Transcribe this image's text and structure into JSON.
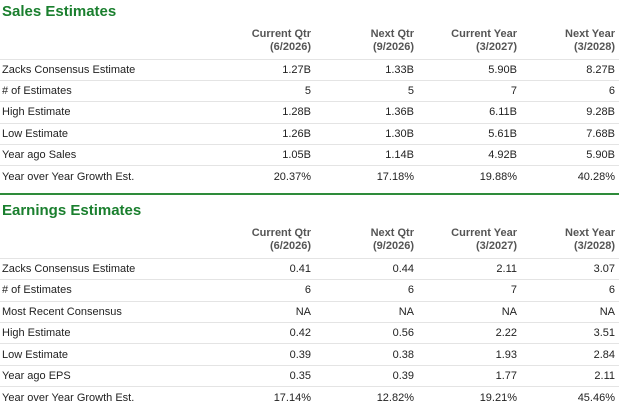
{
  "sales": {
    "title": "Sales Estimates",
    "columns": [
      {
        "label": "Current Qtr",
        "period": "(6/2026)"
      },
      {
        "label": "Next Qtr",
        "period": "(9/2026)"
      },
      {
        "label": "Current Year",
        "period": "(3/2027)"
      },
      {
        "label": "Next Year",
        "period": "(3/2028)"
      }
    ],
    "rows": [
      {
        "label": "Zacks Consensus Estimate",
        "values": [
          "1.27B",
          "1.33B",
          "5.90B",
          "8.27B"
        ]
      },
      {
        "label": "# of Estimates",
        "values": [
          "5",
          "5",
          "7",
          "6"
        ]
      },
      {
        "label": "High Estimate",
        "values": [
          "1.28B",
          "1.36B",
          "6.11B",
          "9.28B"
        ]
      },
      {
        "label": "Low Estimate",
        "values": [
          "1.26B",
          "1.30B",
          "5.61B",
          "7.68B"
        ]
      },
      {
        "label": "Year ago Sales",
        "values": [
          "1.05B",
          "1.14B",
          "4.92B",
          "5.90B"
        ]
      },
      {
        "label": "Year over Year Growth Est.",
        "values": [
          "20.37%",
          "17.18%",
          "19.88%",
          "40.28%"
        ]
      }
    ]
  },
  "earnings": {
    "title": "Earnings Estimates",
    "columns": [
      {
        "label": "Current Qtr",
        "period": "(6/2026)"
      },
      {
        "label": "Next Qtr",
        "period": "(9/2026)"
      },
      {
        "label": "Current Year",
        "period": "(3/2027)"
      },
      {
        "label": "Next Year",
        "period": "(3/2028)"
      }
    ],
    "rows": [
      {
        "label": "Zacks Consensus Estimate",
        "values": [
          "0.41",
          "0.44",
          "2.11",
          "3.07"
        ]
      },
      {
        "label": "# of Estimates",
        "values": [
          "6",
          "6",
          "7",
          "6"
        ]
      },
      {
        "label": "Most Recent Consensus",
        "values": [
          "NA",
          "NA",
          "NA",
          "NA"
        ]
      },
      {
        "label": "High Estimate",
        "values": [
          "0.42",
          "0.56",
          "2.22",
          "3.51"
        ]
      },
      {
        "label": "Low Estimate",
        "values": [
          "0.39",
          "0.38",
          "1.93",
          "2.84"
        ]
      },
      {
        "label": "Year ago EPS",
        "values": [
          "0.35",
          "0.39",
          "1.77",
          "2.11"
        ]
      },
      {
        "label": "Year over Year Growth Est.",
        "values": [
          "17.14%",
          "12.82%",
          "19.21%",
          "45.46%"
        ]
      }
    ]
  },
  "colors": {
    "accent": "#1a7f2e",
    "divider": "#2e8b3a"
  }
}
